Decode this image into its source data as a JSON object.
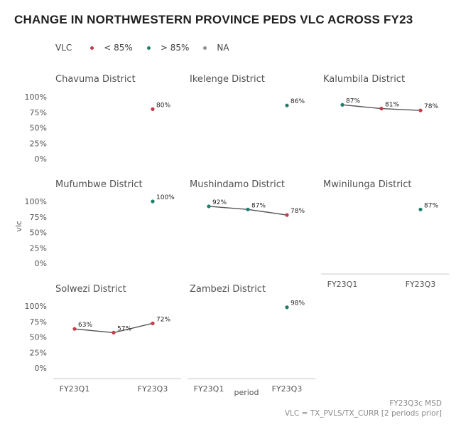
{
  "title": "CHANGE IN NORTHWESTERN PROVINCE PEDS VLC ACROSS FY23",
  "legend": {
    "title": "VLC",
    "items": [
      {
        "label": "< 85%",
        "color": "#c43d4d"
      },
      {
        "label": "> 85%",
        "color": "#1e7e6b"
      },
      {
        "label": "NA",
        "color": "#909090"
      }
    ]
  },
  "caption": {
    "line1": "FY23Q3c MSD",
    "line2": "VLC = TX_PVLS/TX_CURR [2 periods prior]"
  },
  "colors": {
    "below": "#c43d4d",
    "above": "#1e7e6b",
    "na": "#909090",
    "line": "#555555",
    "axis": "#c8c8c8"
  },
  "chart_data": {
    "type": "line",
    "xlabel": "period",
    "ylabel": "vlc",
    "ylim": [
      0,
      1
    ],
    "yticks": [
      "0%",
      "25%",
      "50%",
      "75%",
      "100%"
    ],
    "xticks": [
      "FY23Q1",
      "FY23Q3"
    ],
    "periods": [
      "FY23Q1",
      "FY23Q2",
      "FY23Q3"
    ],
    "panels": [
      {
        "name": "Chavuma District",
        "points": [
          {
            "period": "FY23Q3",
            "value": 0.8,
            "label": "80%"
          }
        ]
      },
      {
        "name": "Ikelenge District",
        "points": [
          {
            "period": "FY23Q3",
            "value": 0.86,
            "label": "86%"
          }
        ]
      },
      {
        "name": "Kalumbila District",
        "points": [
          {
            "period": "FY23Q1",
            "value": 0.87,
            "label": "87%"
          },
          {
            "period": "FY23Q2",
            "value": 0.81,
            "label": "81%"
          },
          {
            "period": "FY23Q3",
            "value": 0.78,
            "label": "78%"
          }
        ]
      },
      {
        "name": "Mufumbwe District",
        "points": [
          {
            "period": "FY23Q3",
            "value": 1.0,
            "label": "100%"
          }
        ]
      },
      {
        "name": "Mushindamo District",
        "points": [
          {
            "period": "FY23Q1",
            "value": 0.92,
            "label": "92%"
          },
          {
            "period": "FY23Q2",
            "value": 0.87,
            "label": "87%"
          },
          {
            "period": "FY23Q3",
            "value": 0.78,
            "label": "78%"
          }
        ]
      },
      {
        "name": "Mwinilunga District",
        "points": [
          {
            "period": "FY23Q3",
            "value": 0.87,
            "label": "87%"
          }
        ]
      },
      {
        "name": "Solwezi District",
        "points": [
          {
            "period": "FY23Q1",
            "value": 0.63,
            "label": "63%"
          },
          {
            "period": "FY23Q2",
            "value": 0.57,
            "label": "57%"
          },
          {
            "period": "FY23Q3",
            "value": 0.72,
            "label": "72%"
          }
        ]
      },
      {
        "name": "Zambezi District",
        "points": [
          {
            "period": "FY23Q3",
            "value": 0.98,
            "label": "98%"
          }
        ]
      }
    ]
  }
}
